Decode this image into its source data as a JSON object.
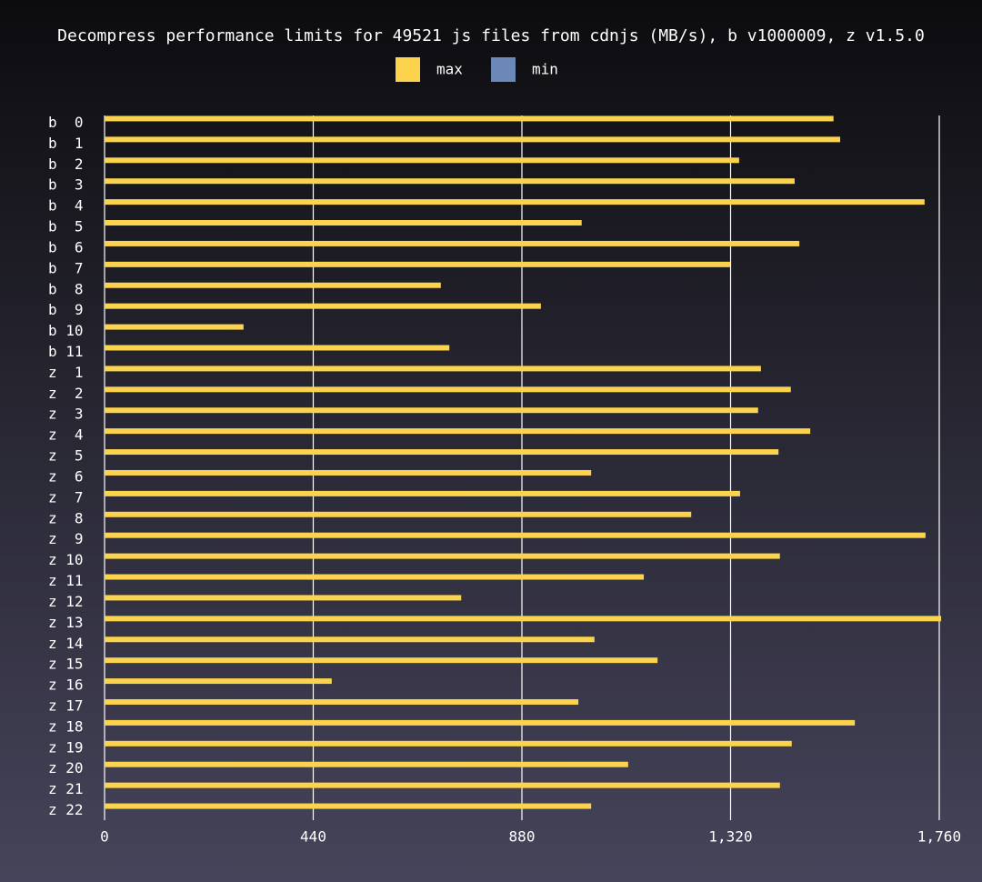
{
  "chart_data": {
    "type": "hbar",
    "title": "Decompress performance limits for 49521 js files from cdnjs (MB/s), b v1000009, z v1.5.0",
    "categories": [
      "b  0",
      "b  1",
      "b  2",
      "b  3",
      "b  4",
      "b  5",
      "b  6",
      "b  7",
      "b  8",
      "b  9",
      "b 10",
      "b 11",
      "z  1",
      "z  2",
      "z  3",
      "z  4",
      "z  5",
      "z  6",
      "z  7",
      "z  8",
      "z  9",
      "z 10",
      "z 11",
      "z 12",
      "z 13",
      "z 14",
      "z 15",
      "z 16",
      "z 17",
      "z 18",
      "z 19",
      "z 20",
      "z 21",
      "z 22"
    ],
    "series": [
      {
        "name": "max",
        "color": "#fcd34d",
        "values": [
          1537,
          1551,
          1338,
          1455,
          1729,
          1006,
          1465,
          1319,
          709,
          920,
          293,
          727,
          1384,
          1447,
          1378,
          1488,
          1421,
          1026,
          1340,
          1237,
          1731,
          1424,
          1137,
          752,
          1764,
          1033,
          1166,
          479,
          999,
          1582,
          1449,
          1104,
          1424,
          1026
        ]
      },
      {
        "name": "min",
        "color": "#6b88b8",
        "values": [
          0,
          0,
          0,
          0,
          0,
          0,
          0,
          0,
          0,
          0,
          0,
          0,
          0,
          0,
          0,
          0,
          0,
          0,
          0,
          0,
          0,
          0,
          0,
          0,
          0,
          0,
          0,
          0,
          0,
          0,
          0,
          0,
          0,
          0
        ]
      }
    ],
    "xlim": [
      0,
      1760
    ],
    "xticks": [
      0,
      440,
      880,
      {
        "value": 1320,
        "label": "1,320"
      },
      {
        "value": 1760,
        "label": "1,760"
      }
    ],
    "grid": true,
    "legend": "top"
  }
}
